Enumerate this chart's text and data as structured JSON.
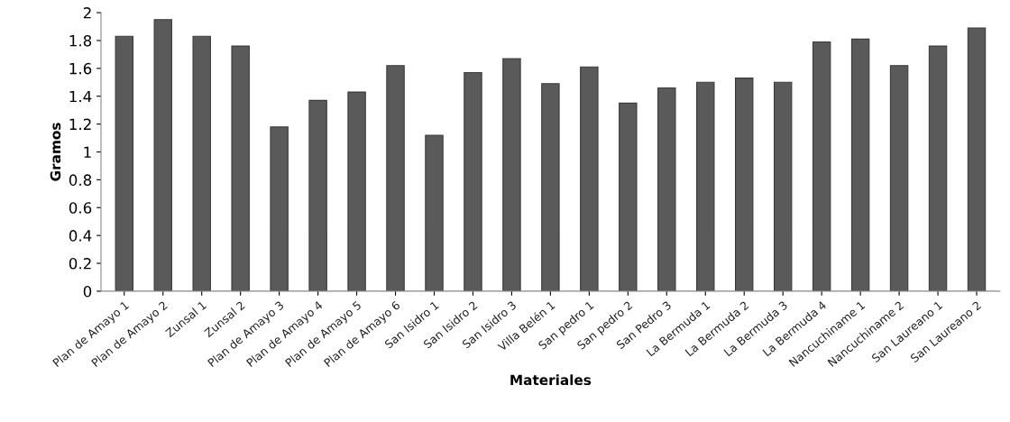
{
  "chart_data": {
    "type": "bar",
    "xlabel": "Materiales",
    "ylabel": "Gramos",
    "categories": [
      "Plan de Amayo 1",
      "Plan de Amayo 2",
      "Zunsal 1",
      "Zunsal 2",
      "Plan de Amayo 3",
      "Plan de Amayo 4",
      "Plan de Amayo 5",
      "Plan de Amayo 6",
      "San Isidro 1",
      "San Isidro 2",
      "San Isidro 3",
      "Villa Belén 1",
      "San pedro 1",
      "San pedro 2",
      "San Pedro 3",
      "La Bermuda 1",
      "La Bermuda 2",
      "La Bermuda 3",
      "La Bermuda 4",
      "Nancuchiname 1",
      "Nancuchiname 2",
      "San Laureano 1",
      "San Laureano 2"
    ],
    "values": [
      1.83,
      1.95,
      1.83,
      1.76,
      1.18,
      1.37,
      1.43,
      1.62,
      1.12,
      1.57,
      1.67,
      1.49,
      1.61,
      1.35,
      1.46,
      1.5,
      1.53,
      1.5,
      1.79,
      1.81,
      1.62,
      1.76,
      1.89
    ],
    "color": "#5a5a5a",
    "ylim": [
      0,
      2
    ],
    "yticks": [
      0,
      0.2,
      0.4,
      0.6,
      0.8,
      1,
      1.2,
      1.4,
      1.6,
      1.8,
      2
    ],
    "grid": false,
    "legend": false
  }
}
